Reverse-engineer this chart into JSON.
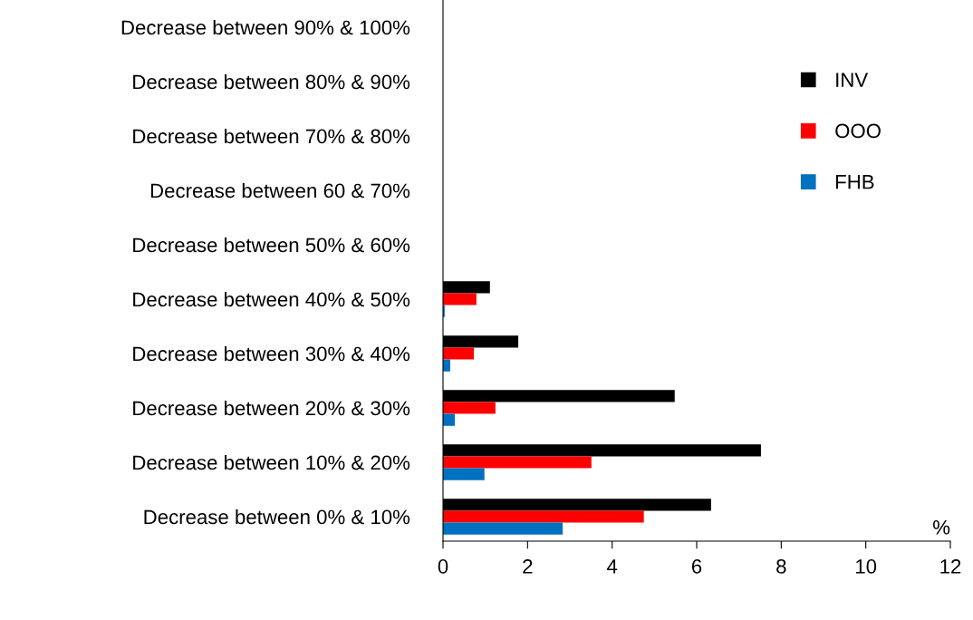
{
  "chart_data": {
    "type": "bar",
    "orientation": "horizontal",
    "xlabel": "%",
    "categories": [
      "Decrease between 90% & 100%",
      "Decrease between 80% & 90%",
      "Decrease between 70% & 80%",
      "Decrease between 60 & 70%",
      "Decrease between 50% & 60%",
      "Decrease between 40% & 50%",
      "Decrease between 30% & 40%",
      "Decrease between 20% & 30%",
      "Decrease between 10% & 20%",
      "Decrease between 0% & 10%"
    ],
    "series": [
      {
        "name": "INV",
        "color": "#000000",
        "values": [
          0,
          0,
          0,
          0,
          0,
          1.11,
          1.78,
          5.48,
          7.52,
          6.34
        ]
      },
      {
        "name": "OOO",
        "color": "#ff0000",
        "values": [
          0,
          0,
          0,
          0,
          0,
          0.79,
          0.73,
          1.24,
          3.51,
          4.75
        ]
      },
      {
        "name": "FHB",
        "color": "#0070c0",
        "values": [
          0,
          0,
          0,
          0,
          0,
          0.04,
          0.17,
          0.28,
          0.98,
          2.83
        ]
      }
    ],
    "xlim": [
      0,
      12
    ],
    "xticks": [
      0,
      2,
      4,
      6,
      8,
      10,
      12
    ],
    "grid": false,
    "legend": "top right"
  }
}
